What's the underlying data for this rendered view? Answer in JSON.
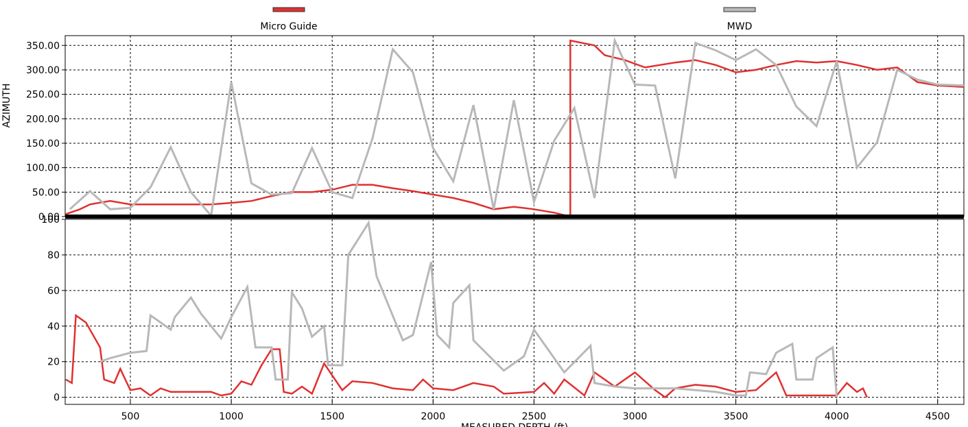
{
  "chart_data": [
    {
      "type": "line",
      "ylabel": "AZIMUTH",
      "xlim": [
        177,
        4630
      ],
      "ylim": [
        0,
        370
      ],
      "xticks": [
        500,
        1000,
        1500,
        2000,
        2500,
        3000,
        3500,
        4000,
        4500
      ],
      "yticks": [
        {
          "value": 0,
          "label": "0.00"
        },
        {
          "value": 50,
          "label": "50.00"
        },
        {
          "value": 100,
          "label": "100.00"
        },
        {
          "value": 150,
          "label": "150.00"
        },
        {
          "value": 200,
          "label": "200.00"
        },
        {
          "value": 250,
          "label": "250.00"
        },
        {
          "value": 300,
          "label": "300.00"
        },
        {
          "value": 350,
          "label": "350.00"
        }
      ],
      "grid": true,
      "series": [
        {
          "name": "Micro Guide",
          "color": "#e03030",
          "x": [
            180,
            250,
            300,
            400,
            500,
            700,
            900,
            1000,
            1100,
            1200,
            1300,
            1400,
            1500,
            1600,
            1700,
            1800,
            1900,
            2000,
            2100,
            2200,
            2300,
            2400,
            2500,
            2600,
            2680,
            2680,
            2800,
            2850,
            2950,
            3050,
            3200,
            3300,
            3400,
            3500,
            3600,
            3700,
            3800,
            3900,
            4000,
            4100,
            4200,
            4300,
            4400,
            4500,
            4630
          ],
          "values": [
            5,
            15,
            25,
            32,
            25,
            25,
            25,
            28,
            32,
            42,
            50,
            50,
            55,
            65,
            65,
            58,
            52,
            45,
            38,
            28,
            15,
            20,
            15,
            8,
            0,
            360,
            350,
            330,
            320,
            305,
            315,
            320,
            310,
            295,
            300,
            310,
            318,
            315,
            318,
            310,
            300,
            305,
            275,
            268,
            265
          ]
        },
        {
          "name": "MWD",
          "color": "#b8b8b8",
          "x": [
            200,
            300,
            400,
            500,
            600,
            700,
            800,
            900,
            1000,
            1100,
            1200,
            1300,
            1400,
            1500,
            1600,
            1700,
            1800,
            1900,
            2000,
            2100,
            2200,
            2300,
            2400,
            2500,
            2600,
            2700,
            2800,
            2900,
            3000,
            3100,
            3200,
            3300,
            3400,
            3500,
            3600,
            3700,
            3800,
            3900,
            4000,
            4100,
            4200,
            4300,
            4400,
            4500,
            4630
          ],
          "values": [
            15,
            52,
            15,
            18,
            60,
            142,
            50,
            2,
            275,
            68,
            45,
            48,
            140,
            50,
            38,
            160,
            342,
            295,
            140,
            72,
            228,
            15,
            238,
            30,
            155,
            222,
            38,
            360,
            270,
            268,
            78,
            355,
            340,
            320,
            342,
            310,
            225,
            185,
            318,
            100,
            152,
            300,
            280,
            270,
            268
          ]
        }
      ]
    },
    {
      "type": "line",
      "xlabel": "MEASURED DEPTH (ft)",
      "xlim": [
        177,
        4630
      ],
      "ylim": [
        -4,
        100
      ],
      "xticks": [
        500,
        1000,
        1500,
        2000,
        2500,
        3000,
        3500,
        4000,
        4500
      ],
      "yticks": [
        0,
        20,
        40,
        60,
        80,
        100
      ],
      "grid": true,
      "series": [
        {
          "color": "#e03030",
          "x": [
            180,
            210,
            230,
            280,
            350,
            370,
            420,
            450,
            500,
            550,
            600,
            650,
            700,
            900,
            950,
            1000,
            1050,
            1100,
            1150,
            1200,
            1240,
            1260,
            1300,
            1350,
            1400,
            1460,
            1550,
            1600,
            1700,
            1800,
            1900,
            1950,
            2000,
            2100,
            2200,
            2300,
            2350,
            2500,
            2550,
            2600,
            2650,
            2750,
            2800,
            2900,
            3000,
            3100,
            3150,
            3200,
            3300,
            3400,
            3500,
            3600,
            3700,
            3750,
            4000,
            4050,
            4100,
            4130,
            4150
          ],
          "values": [
            10,
            8,
            46,
            42,
            28,
            10,
            8,
            16,
            4,
            5,
            1,
            5,
            3,
            3,
            1,
            2,
            9,
            7,
            18,
            27,
            27,
            3,
            2,
            6,
            2,
            19,
            4,
            9,
            8,
            5,
            4,
            10,
            5,
            4,
            8,
            6,
            2,
            3,
            8,
            2,
            10,
            1,
            14,
            6,
            14,
            4,
            0,
            5,
            7,
            6,
            3,
            4,
            14,
            1,
            1,
            8,
            3,
            5,
            0
          ]
        },
        {
          "color": "#b8b8b8",
          "x": [
            350,
            400,
            500,
            580,
            600,
            700,
            720,
            800,
            850,
            950,
            1000,
            1080,
            1120,
            1200,
            1220,
            1280,
            1300,
            1350,
            1400,
            1460,
            1480,
            1550,
            1580,
            1680,
            1720,
            1850,
            1900,
            1990,
            2020,
            2080,
            2100,
            2180,
            2200,
            2350,
            2450,
            2500,
            2650,
            2780,
            2800,
            2900,
            3000,
            3200,
            3400,
            3500,
            3550,
            3570,
            3650,
            3700,
            3780,
            3800,
            3880,
            3900,
            3980,
            4000
          ],
          "values": [
            20,
            22,
            25,
            26,
            46,
            38,
            45,
            56,
            47,
            33,
            45,
            62,
            28,
            28,
            10,
            10,
            59,
            50,
            34,
            40,
            18,
            18,
            80,
            98,
            68,
            32,
            35,
            76,
            35,
            28,
            53,
            63,
            32,
            15,
            23,
            38,
            14,
            29,
            8,
            6,
            5,
            5,
            3,
            1,
            1,
            14,
            13,
            25,
            30,
            10,
            10,
            22,
            28,
            0
          ]
        }
      ]
    }
  ]
}
